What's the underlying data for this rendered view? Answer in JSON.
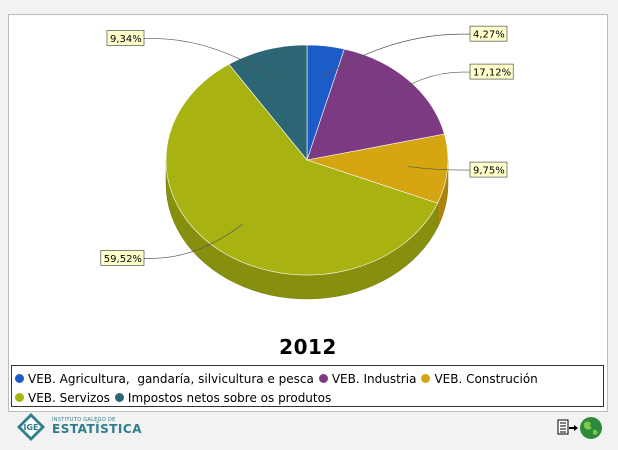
{
  "chart_data": {
    "type": "pie",
    "title": "2012",
    "series": [
      {
        "name": "VEB. Agricultura,  gandaría, silvicultura e pesca",
        "value": 4.27,
        "label": "4,27%",
        "color": "#1c5cc8"
      },
      {
        "name": "VEB. Industria",
        "value": 17.12,
        "label": "17,12%",
        "color": "#7b3a82"
      },
      {
        "name": "VEB. Construción",
        "value": 9.75,
        "label": "9,75%",
        "color": "#d6a512"
      },
      {
        "name": "VEB. Servizos",
        "value": 59.52,
        "label": "59,52%",
        "color": "#a8b311"
      },
      {
        "name": "Impostos netos sobre os produtos",
        "value": 9.34,
        "label": "9,34%",
        "color": "#2c6674"
      }
    ],
    "legend_position": "bottom",
    "style": "3d"
  },
  "footer": {
    "logo_small": "INSTITUTO GALEGO DE",
    "logo_big": "ESTATÍSTICA",
    "logo_mark": "IGE",
    "icons": [
      "document-export-icon",
      "globe-icon"
    ]
  }
}
